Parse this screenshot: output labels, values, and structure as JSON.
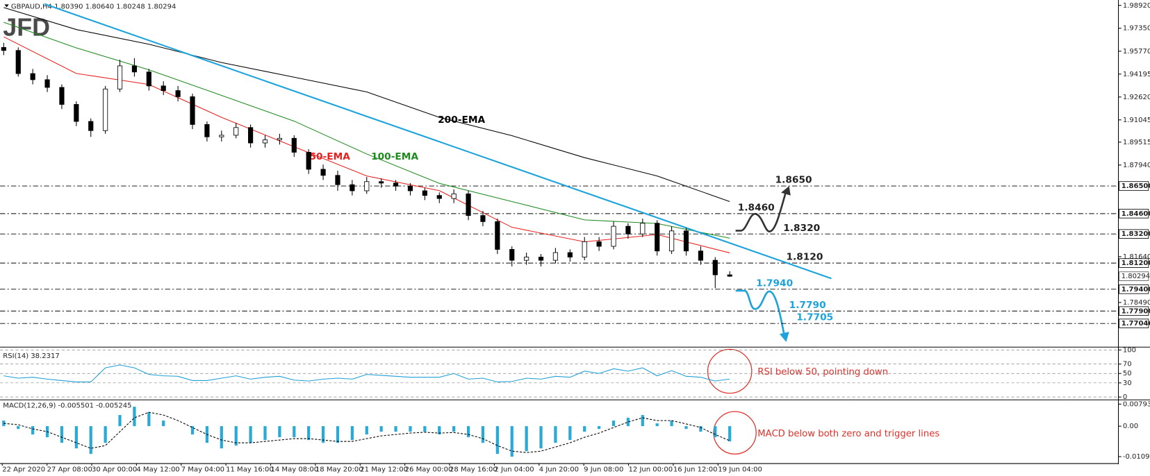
{
  "logo": "JFD",
  "time_axis": [
    "22 Apr 2020",
    "27 Apr 08:00",
    "30 Apr 00:00",
    "4 May 12:00",
    "7 May 04:00",
    "11 May 16:00",
    "14 May 08:00",
    "18 May 20:00",
    "21 May 12:00",
    "26 May 00:00",
    "28 May 16:00",
    "2 Jun 04:00",
    "4 Jun 20:00",
    "9 Jun 08:00",
    "12 Jun 00:00",
    "16 Jun 12:00",
    "19 Jun 04:00"
  ],
  "chart_data": [
    {
      "type": "candlestick",
      "title": "GBPAUD,H4  1.80390 1.80640 1.80248 1.80294",
      "up_color": "#ffffff",
      "down_color": "#000000",
      "open": [
        1.9603,
        1.9582,
        1.9423,
        1.9381,
        1.9328,
        1.9211,
        1.9094,
        1.9031,
        1.9317,
        1.9476,
        1.9434,
        1.9338,
        1.9306,
        1.9264,
        1.9073,
        1.8988,
        1.8999,
        1.9052,
        1.8946,
        1.8967,
        1.8978,
        1.8882,
        1.8765,
        1.8723,
        1.8659,
        1.8617,
        1.868,
        1.867,
        1.8649,
        1.8617,
        1.8585,
        1.8564,
        1.8596,
        1.8447,
        1.8405,
        1.8214,
        1.8139,
        1.8161,
        1.8139,
        1.8192,
        1.8161,
        1.8267,
        1.8235,
        1.8373,
        1.832,
        1.8394,
        1.8203,
        1.8341,
        1.8203,
        1.8139,
        1.8039
      ],
      "high": [
        1.9635,
        1.9603,
        1.9455,
        1.9412,
        1.9349,
        1.9232,
        1.9115,
        1.9338,
        1.9519,
        1.9529,
        1.9455,
        1.937,
        1.9338,
        1.9285,
        1.9094,
        1.9031,
        1.9084,
        1.9073,
        1.8999,
        1.9009,
        1.8999,
        1.8903,
        1.8797,
        1.8755,
        1.8691,
        1.8712,
        1.8702,
        1.8691,
        1.867,
        1.8638,
        1.8606,
        1.8627,
        1.8617,
        1.8479,
        1.8426,
        1.8235,
        1.8192,
        1.8182,
        1.8224,
        1.8214,
        1.8299,
        1.8299,
        1.8405,
        1.8394,
        1.8426,
        1.8415,
        1.8373,
        1.8362,
        1.8235,
        1.8161,
        1.8064
      ],
      "low": [
        1.955,
        1.9402,
        1.9349,
        1.9296,
        1.9179,
        1.9062,
        1.8988,
        1.9009,
        1.9296,
        1.9402,
        1.9306,
        1.9275,
        1.9232,
        1.9041,
        1.8956,
        1.8956,
        1.8978,
        1.8914,
        1.8914,
        1.8935,
        1.885,
        1.8733,
        1.8691,
        1.8617,
        1.8585,
        1.8596,
        1.8638,
        1.8617,
        1.8585,
        1.8553,
        1.8532,
        1.8532,
        1.8415,
        1.8373,
        1.8182,
        1.8097,
        1.8108,
        1.8097,
        1.8118,
        1.8129,
        1.8139,
        1.8203,
        1.8214,
        1.8288,
        1.8299,
        1.8171,
        1.8182,
        1.8171,
        1.8108,
        1.7948,
        1.80248
      ],
      "close": [
        1.9582,
        1.9423,
        1.9381,
        1.9328,
        1.9211,
        1.9094,
        1.9031,
        1.9317,
        1.9476,
        1.9434,
        1.9338,
        1.9306,
        1.9264,
        1.9073,
        1.8988,
        1.8999,
        1.9052,
        1.8946,
        1.8967,
        1.8978,
        1.8882,
        1.8765,
        1.8723,
        1.8659,
        1.8617,
        1.868,
        1.867,
        1.8649,
        1.8617,
        1.8585,
        1.8564,
        1.8596,
        1.8447,
        1.8405,
        1.8214,
        1.8139,
        1.8161,
        1.8139,
        1.8192,
        1.8161,
        1.8267,
        1.8235,
        1.8373,
        1.832,
        1.8394,
        1.8203,
        1.8341,
        1.8203,
        1.8139,
        1.8039,
        1.80294
      ],
      "lines": [
        {
          "name": "200-EMA",
          "color": "#000000",
          "x": [
            0,
            5,
            10,
            15,
            20,
            25,
            30,
            35,
            40,
            45,
            50
          ],
          "values": [
            1.9877,
            1.9726,
            1.9625,
            1.9499,
            1.9398,
            1.9297,
            1.9122,
            1.8996,
            1.8845,
            1.8719,
            1.8543
          ]
        },
        {
          "name": "100-EMA",
          "color": "#1f8a1f",
          "x": [
            0,
            5,
            10,
            15,
            20,
            25,
            30,
            35,
            40,
            45,
            50
          ],
          "values": [
            1.9776,
            1.96,
            1.9449,
            1.9273,
            1.9096,
            1.887,
            1.8668,
            1.8543,
            1.8417,
            1.8392,
            1.8291
          ]
        },
        {
          "name": "50-EMA",
          "color": "#e8211e",
          "x": [
            0,
            5,
            10,
            15,
            20,
            25,
            30,
            35,
            40,
            45,
            50
          ],
          "values": [
            1.9676,
            1.9424,
            1.9348,
            1.9122,
            1.892,
            1.8719,
            1.8618,
            1.8366,
            1.8266,
            1.8316,
            1.819
          ]
        }
      ],
      "trendline": {
        "color": "#1ca3dc",
        "x": [
          2.8,
          57
        ],
        "values": [
          1.9902,
          1.8014
        ]
      },
      "ylim": [
        1.7552,
        1.9919
      ],
      "yticks": [
        {
          "value": 1.9892,
          "label": "1.98920"
        },
        {
          "value": 1.9735,
          "label": "1.97350"
        },
        {
          "value": 1.9577,
          "label": "1.95770"
        },
        {
          "value": 1.94195,
          "label": "1.94195"
        },
        {
          "value": 1.9262,
          "label": "1.92620"
        },
        {
          "value": 1.91045,
          "label": "1.91045"
        },
        {
          "value": 1.89515,
          "label": "1.89515"
        },
        {
          "value": 1.8794,
          "label": "1.87940"
        },
        {
          "value": 1.8164,
          "label": "1.81640"
        },
        {
          "value": 1.7849,
          "label": "1.78490"
        }
      ],
      "levels": [
        {
          "value": 1.865,
          "label": "1.86500",
          "note": "1.8650",
          "color": "#222222"
        },
        {
          "value": 1.846,
          "label": "1.84600",
          "note": "1.8460",
          "color": "#222222"
        },
        {
          "value": 1.832,
          "label": "1.83200",
          "note": "1.8320",
          "color": "#222222"
        },
        {
          "value": 1.812,
          "label": "1.81200",
          "note": "1.8120",
          "color": "#222222"
        },
        {
          "value": 1.794,
          "label": "1.79400",
          "note": "1.7940",
          "color": "#1ca3dc"
        },
        {
          "value": 1.779,
          "label": "1.77900",
          "note": "1.7790",
          "color": "#1ca3dc"
        },
        {
          "value": 1.77046,
          "label": "1.77046",
          "note": "1.7705",
          "color": "#1ca3dc"
        }
      ],
      "last": {
        "value": 1.80294,
        "label": "1.80294"
      }
    },
    {
      "type": "line",
      "title": "RSI(14) 38.2317",
      "color": "#1f9fd6",
      "values": [
        45,
        40,
        42,
        38,
        35,
        32,
        32,
        62,
        68,
        62,
        48,
        45,
        44,
        35,
        35,
        40,
        45,
        38,
        42,
        44,
        36,
        34,
        38,
        40,
        38,
        48,
        46,
        44,
        42,
        42,
        42,
        50,
        38,
        40,
        32,
        33,
        40,
        38,
        44,
        42,
        55,
        50,
        60,
        55,
        62,
        45,
        56,
        44,
        42,
        34,
        38.2317
      ],
      "ylim": [
        -6,
        106
      ],
      "yticks": [
        100,
        70,
        50,
        30,
        0
      ],
      "annotation": "RSI below 50, pointing down"
    },
    {
      "type": "macd",
      "title": "MACD(12,26,9) -0.005501 -0.005245",
      "histogram": {
        "color": "#29a9d6",
        "values": [
          0.002,
          -0.001,
          -0.003,
          -0.004,
          -0.006,
          -0.008,
          -0.01,
          -0.006,
          0.004,
          0.007,
          0.005,
          0.002,
          0,
          -0.003,
          -0.006,
          -0.008,
          -0.007,
          -0.006,
          -0.005,
          -0.004,
          -0.004,
          -0.005,
          -0.006,
          -0.006,
          -0.005,
          -0.003,
          -0.002,
          -0.002,
          -0.002,
          -0.002,
          -0.003,
          -0.002,
          -0.004,
          -0.006,
          -0.01,
          -0.011,
          -0.009,
          -0.008,
          -0.006,
          -0.005,
          -0.002,
          -0.001,
          0.002,
          0.003,
          0.004,
          0.001,
          0.002,
          -0.001,
          -0.002,
          -0.004,
          -0.005501
        ]
      },
      "signal": {
        "color": "#000000",
        "values": [
          0.001,
          0.0005,
          -0.001,
          -0.002,
          -0.004,
          -0.006,
          -0.008,
          -0.007,
          -0.002,
          0.003,
          0.005,
          0.004,
          0.002,
          -0.0005,
          -0.003,
          -0.005,
          -0.006,
          -0.006,
          -0.0055,
          -0.005,
          -0.0045,
          -0.0045,
          -0.005,
          -0.0055,
          -0.0055,
          -0.0045,
          -0.0035,
          -0.003,
          -0.0025,
          -0.0022,
          -0.0025,
          -0.0023,
          -0.003,
          -0.0045,
          -0.007,
          -0.009,
          -0.0095,
          -0.009,
          -0.0075,
          -0.006,
          -0.004,
          -0.0025,
          -0.0005,
          0.0015,
          0.003,
          0.002,
          0.002,
          0.0008,
          -0.0005,
          -0.003,
          -0.005245
        ]
      },
      "ylim": [
        -0.0132,
        0.0092
      ],
      "yticks": [
        0.007931,
        {
          "value": 0,
          "label": "0.00"
        },
        -0.010976
      ],
      "annotation": "MACD below both zero and trigger lines"
    }
  ]
}
